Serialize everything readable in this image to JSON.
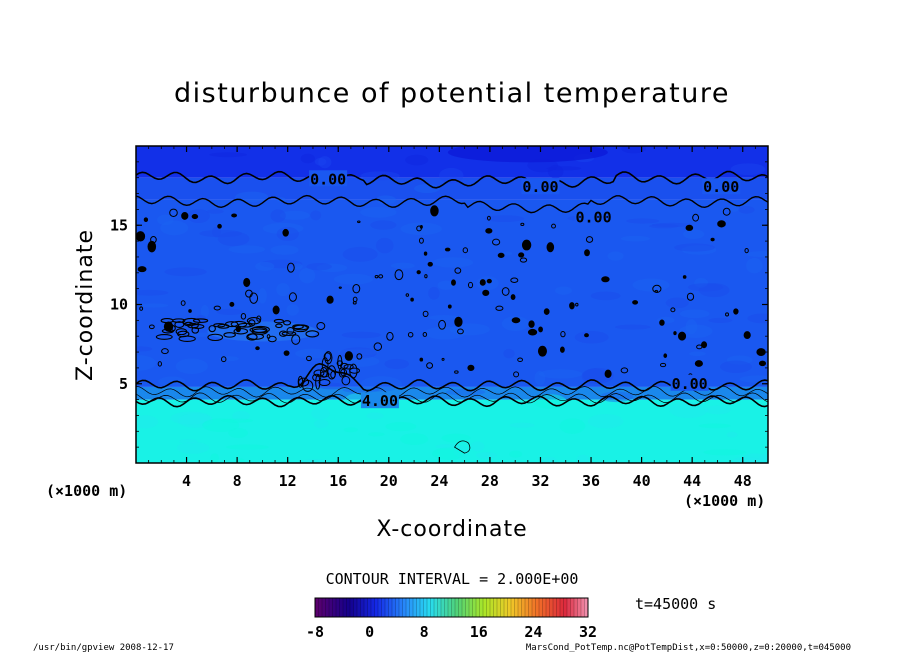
{
  "chart_data": {
    "type": "heatmap",
    "title": "disturbunce of potential temperature",
    "xlabel": "X-coordinate",
    "ylabel": "Z-coordinate",
    "x_units_left": "(×1000 m)",
    "x_units_right": "(×1000 m)",
    "xlim": [
      0,
      50
    ],
    "ylim": [
      0,
      20
    ],
    "x_ticks": [
      4,
      8,
      12,
      16,
      20,
      24,
      28,
      32,
      36,
      40,
      44,
      48
    ],
    "x_tick_labels": [
      "4",
      "8",
      "12",
      "16",
      "20",
      "24",
      "28",
      "32",
      "36",
      "40",
      "44",
      "48"
    ],
    "y_ticks": [
      5,
      10,
      15
    ],
    "y_tick_labels": [
      "5",
      "10",
      "15"
    ],
    "contour_interval_text": "CONTOUR INTERVAL = 2.000E+00",
    "time_text": "t=45000 s",
    "colorbar": {
      "min": -8,
      "max": 32,
      "ticks": [
        -8,
        0,
        8,
        16,
        24,
        32
      ],
      "tick_labels": [
        "-8",
        "0",
        "8",
        "16",
        "24",
        "32"
      ]
    },
    "contour_labels": [
      {
        "text": "0.00",
        "x": 15.2,
        "z": 17.9
      },
      {
        "text": "0.00",
        "x": 32.0,
        "z": 17.4
      },
      {
        "text": "0.00",
        "x": 36.2,
        "z": 15.5
      },
      {
        "text": "0.00",
        "x": 46.3,
        "z": 17.4
      },
      {
        "text": "0.00",
        "x": 43.8,
        "z": 5.0
      },
      {
        "text": "4.00",
        "x": 19.3,
        "z": 3.9
      }
    ],
    "bands": [
      {
        "z_from": 0,
        "z_to": 4.0,
        "value": 6,
        "color": "#19f2e6"
      },
      {
        "z_from": 4.0,
        "z_to": 4.8,
        "value": 3,
        "color": "#1a88ec"
      },
      {
        "z_from": 4.8,
        "z_to": 16.6,
        "value": 0,
        "color": "#1a58f0"
      },
      {
        "z_from": 16.6,
        "z_to": 18.0,
        "value": -1,
        "color": "#1a50ee"
      },
      {
        "z_from": 18.0,
        "z_to": 20.0,
        "value": -2,
        "color": "#1230e8"
      }
    ],
    "colors": {
      "cyan": "#19f2e6",
      "blue_mid": "#1a58f0",
      "blue_dark": "#1230e8",
      "contour": "#000000"
    }
  },
  "footer": {
    "left": "/usr/bin/gpview   2008-12-17",
    "right": "MarsCond_PotTemp.nc@PotTempDist,x=0:50000,z=0:20000,t=045000"
  }
}
